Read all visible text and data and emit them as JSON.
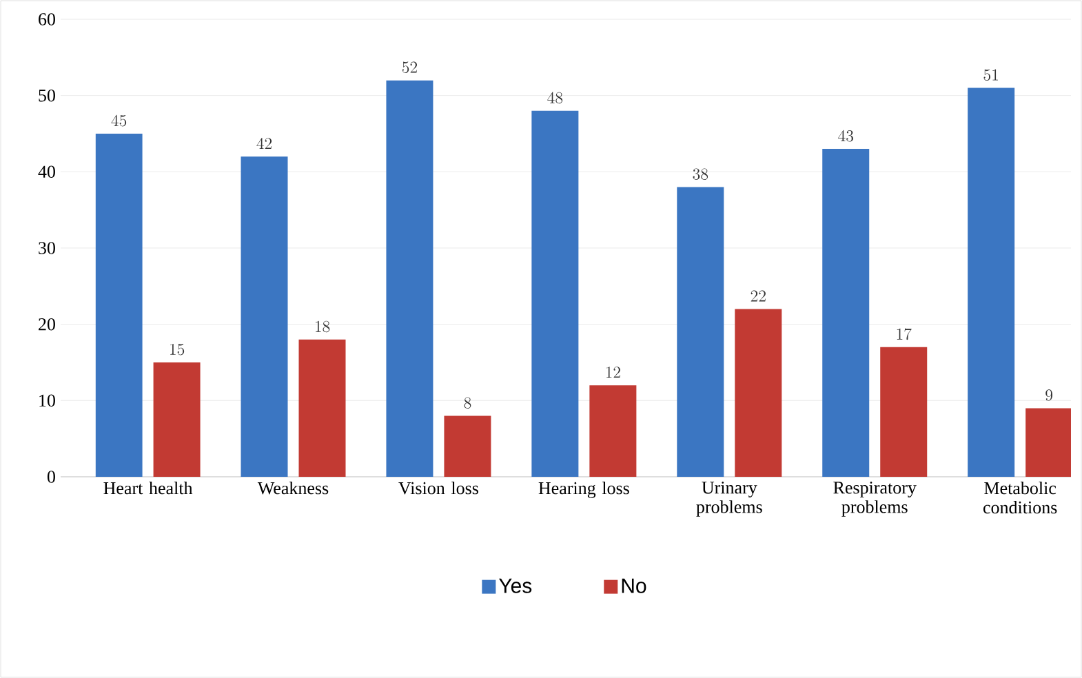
{
  "chart_data": {
    "type": "bar",
    "categories": [
      "Heart health",
      "Weakness",
      "Vision loss",
      "Hearing loss",
      "Urinary problems",
      "Respiratory problems",
      "Metabolic conditions"
    ],
    "series": [
      {
        "name": "Yes",
        "color": "#3b76c2",
        "values": [
          45,
          42,
          52,
          48,
          38,
          43,
          51
        ]
      },
      {
        "name": "No",
        "color": "#c23a33",
        "values": [
          15,
          18,
          8,
          12,
          22,
          17,
          9
        ]
      }
    ],
    "ylim": [
      0,
      60
    ],
    "yticks": [
      0,
      10,
      20,
      30,
      40,
      50,
      60
    ],
    "grid": "y",
    "legend": "bottom",
    "data_labels": true
  }
}
